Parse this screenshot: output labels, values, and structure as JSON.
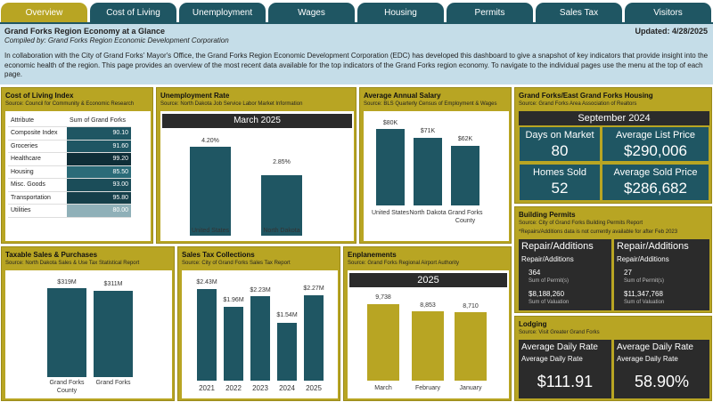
{
  "tabs": [
    "Overview",
    "Cost of Living",
    "Unemployment",
    "Wages",
    "Housing",
    "Permits",
    "Sales Tax",
    "Visitors"
  ],
  "header": {
    "title": "Grand Forks Region Economy at a Glance",
    "subtitle": "Compiled by: Grand Forks Region Economic Development Corporation",
    "updated": "Updated: 4/28/2025",
    "body": "In collaboration with the City of Grand Forks' Mayor's Office, the Grand Forks Region Economic Development Corporation (EDC) has developed this dashboard to give a snapshot of key indicators that provide insight into the economic health of the region. This page provides an overview of the most recent data available for the top indicators of the Grand Forks region economy. To navigate to the individual pages use the menu at the top of each page."
  },
  "col": {
    "title": "Cost of Living Index",
    "source": "Source: Council for Community & Economic Research",
    "headers": [
      "Attribute",
      "Sum of Grand Forks"
    ],
    "rows": [
      {
        "attr": "Composite Index",
        "val": "90.10"
      },
      {
        "attr": "Groceries",
        "val": "91.60"
      },
      {
        "attr": "Healthcare",
        "val": "99.20"
      },
      {
        "attr": "Housing",
        "val": "85.50"
      },
      {
        "attr": "Misc. Goods",
        "val": "93.00"
      },
      {
        "attr": "Transportation",
        "val": "95.80"
      },
      {
        "attr": "Utilities",
        "val": "80.00"
      }
    ]
  },
  "unemp": {
    "title": "Unemployment Rate",
    "source": "Source: North Dakota Job Service Labor Market Information",
    "header": "March 2025",
    "chart_data": {
      "type": "bar",
      "categories": [
        "United States",
        "North Dakota"
      ],
      "values": [
        4.2,
        2.85
      ],
      "labels": [
        "4.20%",
        "2.85%"
      ]
    }
  },
  "salary": {
    "title": "Average Annual Salary",
    "source": "Source: BLS Quarterly Census of Employment & Wages",
    "chart_data": {
      "type": "bar",
      "categories": [
        "United States",
        "North Dakota",
        "Grand Forks County"
      ],
      "values": [
        80,
        71,
        62
      ],
      "labels": [
        "$80K",
        "$71K",
        "$62K"
      ]
    }
  },
  "housing": {
    "title": "Grand Forks/East Grand Forks Housing",
    "source": "Source: Grand Forks Area Association of Realtors",
    "header": "September 2024",
    "kpis": [
      {
        "label": "Days on Market",
        "value": "80"
      },
      {
        "label": "Average List Price",
        "value": "$290,006"
      },
      {
        "label": "Homes Sold",
        "value": "52"
      },
      {
        "label": "Average Sold Price",
        "value": "$286,682"
      }
    ]
  },
  "permits": {
    "title": "Building Permits",
    "source": "Source: City of Grand Forks Building Permits Report",
    "note": "*Repairs/Additions data is not currently available for after Feb 2023",
    "cards": [
      {
        "title": "Repair/Additions",
        "sub": "Repair/Additions",
        "count": "364",
        "count_lbl": "Sum of Permit(s)",
        "value": "$8,188,260",
        "value_lbl": "Sum of Valuation"
      },
      {
        "title": "Repair/Additions",
        "sub": "Repair/Additions",
        "count": "27",
        "count_lbl": "Sum of Permit(s)",
        "value": "$11,347,768",
        "value_lbl": "Sum of Valuation"
      }
    ]
  },
  "taxable": {
    "title": "Taxable Sales & Purchases",
    "source": "Source: North Dakota Sales & Use Tax Statistical Report",
    "chart_data": {
      "type": "bar",
      "categories": [
        "Grand Forks County",
        "Grand Forks"
      ],
      "values": [
        319,
        311
      ],
      "labels": [
        "$319M",
        "$311M"
      ]
    }
  },
  "salestax": {
    "title": "Sales Tax Collections",
    "source": "Source: City of Grand Forks Sales Tax Report",
    "chart_data": {
      "type": "bar",
      "categories": [
        "2021",
        "2022",
        "2023",
        "2024",
        "2025"
      ],
      "values": [
        2.43,
        1.96,
        2.23,
        1.54,
        2.27
      ],
      "labels": [
        "$2.43M",
        "$1.96M",
        "$2.23M",
        "$1.54M",
        "$2.27M"
      ]
    }
  },
  "enplane": {
    "title": "Enplanements",
    "source": "Source: Grand Forks Regional Airport Authority",
    "header": "2025",
    "chart_data": {
      "type": "bar",
      "categories": [
        "March",
        "February",
        "January"
      ],
      "values": [
        9738,
        8853,
        8710
      ],
      "labels": [
        "9,738",
        "8,853",
        "8,710"
      ]
    }
  },
  "lodging": {
    "title": "Lodging",
    "source": "Source: Visit Greater Grand Forks",
    "cards": [
      {
        "title": "Average Daily Rate",
        "sub": "Average Daily Rate",
        "value": "$111.91"
      },
      {
        "title": "Average Daily Rate",
        "sub": "Average Daily Rate",
        "value": "58.90%"
      }
    ]
  },
  "colors": {
    "teal": "#1f5663",
    "gold": "#b8a523",
    "dark": "#2b2b2b"
  }
}
